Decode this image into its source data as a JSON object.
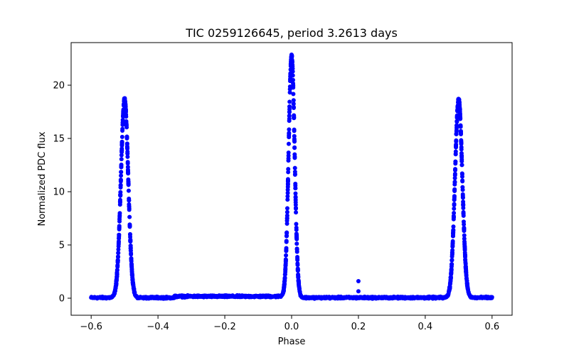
{
  "chart_data": {
    "type": "scatter",
    "title": "TIC 0259126645, period 3.2613 days",
    "xlabel": "Phase",
    "ylabel": "Normalized PDC flux",
    "xlim": [
      -0.66,
      0.66
    ],
    "ylim": [
      -1.6,
      24.0
    ],
    "xticks": [
      -0.6,
      -0.4,
      -0.2,
      0.0,
      0.2,
      0.4,
      0.6
    ],
    "xtick_labels": [
      "−0.6",
      "−0.4",
      "−0.2",
      "0.0",
      "0.2",
      "0.4",
      "0.6"
    ],
    "yticks": [
      0,
      5,
      10,
      15,
      20
    ],
    "ytick_labels": [
      "0",
      "5",
      "10",
      "15",
      "20"
    ],
    "grid": false,
    "marker_color": "#0000ff",
    "series": [
      {
        "name": "phase-folded light curve",
        "x_range": [
          -0.6,
          0.6
        ],
        "baseline": 0.05,
        "peaks": [
          {
            "center": -0.5,
            "height": 18.6,
            "width": 0.011
          },
          {
            "center": 0.0,
            "height": 22.7,
            "width": 0.009
          },
          {
            "center": 0.5,
            "height": 18.6,
            "width": 0.011
          }
        ]
      }
    ],
    "outliers": [
      {
        "x": 0.2,
        "y": 1.6
      },
      {
        "x": 0.2,
        "y": 0.65
      }
    ]
  }
}
